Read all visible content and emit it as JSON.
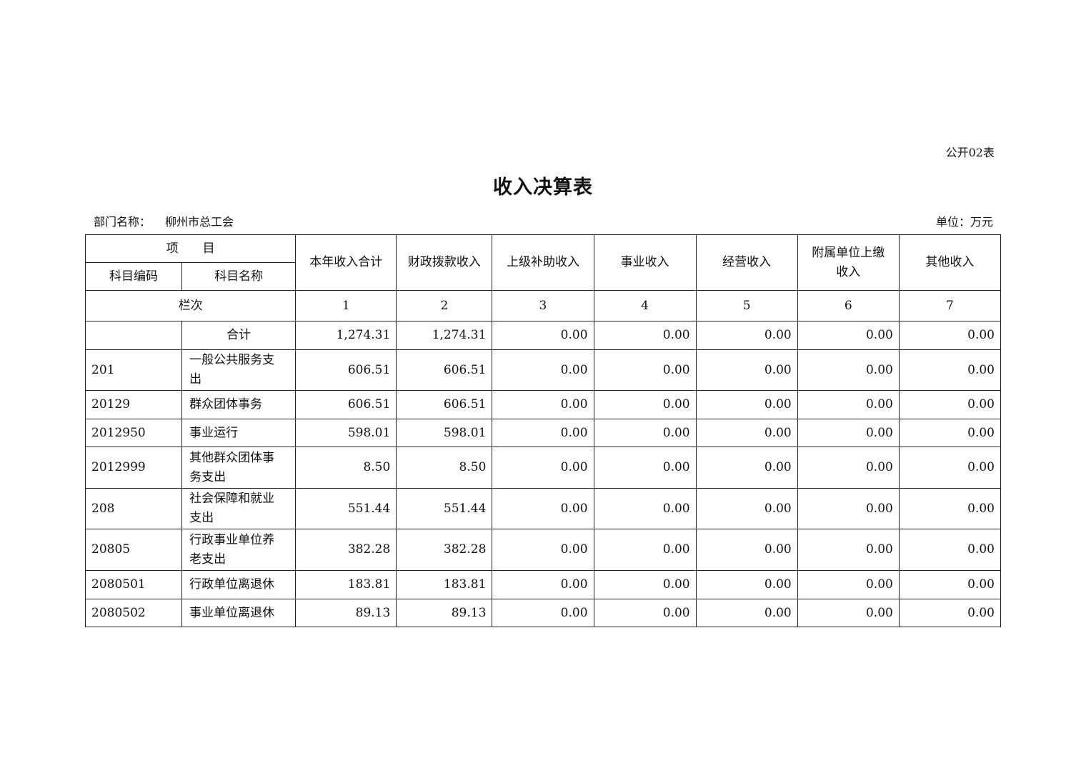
{
  "form_no": "公开02表",
  "title": "收入决算表",
  "dept_label": "部门名称：",
  "dept_name": "柳州市总工会",
  "unit": "单位：万元",
  "header": {
    "item": "项　　目",
    "code": "科目编码",
    "name": "科目名称",
    "columns": [
      "本年收入合计",
      "财政拨款收入",
      "上级补助收入",
      "事业收入",
      "经营收入",
      "附属单位上缴收入",
      "其他收入"
    ],
    "row_no_label": "栏次",
    "row_no": [
      "1",
      "2",
      "3",
      "4",
      "5",
      "6",
      "7"
    ]
  },
  "total": {
    "label": "合计",
    "values": [
      "1,274.31",
      "1,274.31",
      "0.00",
      "0.00",
      "0.00",
      "0.00",
      "0.00"
    ]
  },
  "rows": [
    {
      "code": "201",
      "name": "一般公共服务支出",
      "values": [
        "606.51",
        "606.51",
        "0.00",
        "0.00",
        "0.00",
        "0.00",
        "0.00"
      ]
    },
    {
      "code": "20129",
      "name": "群众团体事务",
      "values": [
        "606.51",
        "606.51",
        "0.00",
        "0.00",
        "0.00",
        "0.00",
        "0.00"
      ]
    },
    {
      "code": "2012950",
      "name": "事业运行",
      "values": [
        "598.01",
        "598.01",
        "0.00",
        "0.00",
        "0.00",
        "0.00",
        "0.00"
      ]
    },
    {
      "code": "2012999",
      "name": "其他群众团体事务支出",
      "values": [
        "8.50",
        "8.50",
        "0.00",
        "0.00",
        "0.00",
        "0.00",
        "0.00"
      ]
    },
    {
      "code": "208",
      "name": "社会保障和就业支出",
      "values": [
        "551.44",
        "551.44",
        "0.00",
        "0.00",
        "0.00",
        "0.00",
        "0.00"
      ]
    },
    {
      "code": "20805",
      "name": "行政事业单位养老支出",
      "values": [
        "382.28",
        "382.28",
        "0.00",
        "0.00",
        "0.00",
        "0.00",
        "0.00"
      ]
    },
    {
      "code": "2080501",
      "name": "行政单位离退休",
      "values": [
        "183.81",
        "183.81",
        "0.00",
        "0.00",
        "0.00",
        "0.00",
        "0.00"
      ]
    },
    {
      "code": "2080502",
      "name": "事业单位离退休",
      "values": [
        "89.13",
        "89.13",
        "0.00",
        "0.00",
        "0.00",
        "0.00",
        "0.00"
      ]
    }
  ]
}
